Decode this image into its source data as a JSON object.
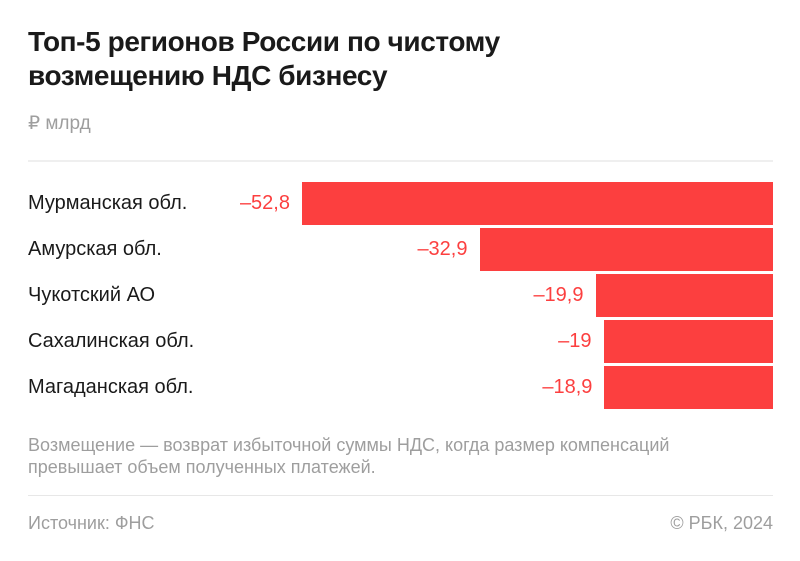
{
  "header": {
    "title_lines": [
      "Топ-5 регионов России по чистому",
      "возмещению НДС бизнесу"
    ],
    "unit": "₽ млрд"
  },
  "chart_data": {
    "type": "bar",
    "orientation": "horizontal",
    "title": "Топ-5 регионов России по чистому возмещению НДС бизнесу",
    "unit": "₽ млрд",
    "categories": [
      "Мурманская обл.",
      "Амурская обл.",
      "Чукотский АО",
      "Сахалинская обл.",
      "Магаданская обл."
    ],
    "values": [
      -52.8,
      -32.9,
      -19.9,
      -19,
      -18.9
    ],
    "value_labels": [
      "–52,8",
      "–32,9",
      "–19,9",
      "–19",
      "–18,9"
    ],
    "value_axis_range": [
      -52.8,
      0
    ],
    "bars_anchored": "right",
    "grid": false,
    "legend": false,
    "bar_color": "#fc3f3f"
  },
  "footnote": "Возмещение — возврат избыточной суммы НДС, когда размер компенсаций превышает объем полученных платежей.",
  "footer": {
    "source": "Источник: ФНС",
    "copyright": "© РБК, 2024"
  },
  "colors": {
    "bar": "#fc3f3f",
    "value_label": "#fc3f3f",
    "title_text": "#1a1a1a",
    "category_label": "#1a1a1a",
    "muted_text": "#9e9e9e",
    "divider": "#efefef",
    "background": "#ffffff"
  }
}
